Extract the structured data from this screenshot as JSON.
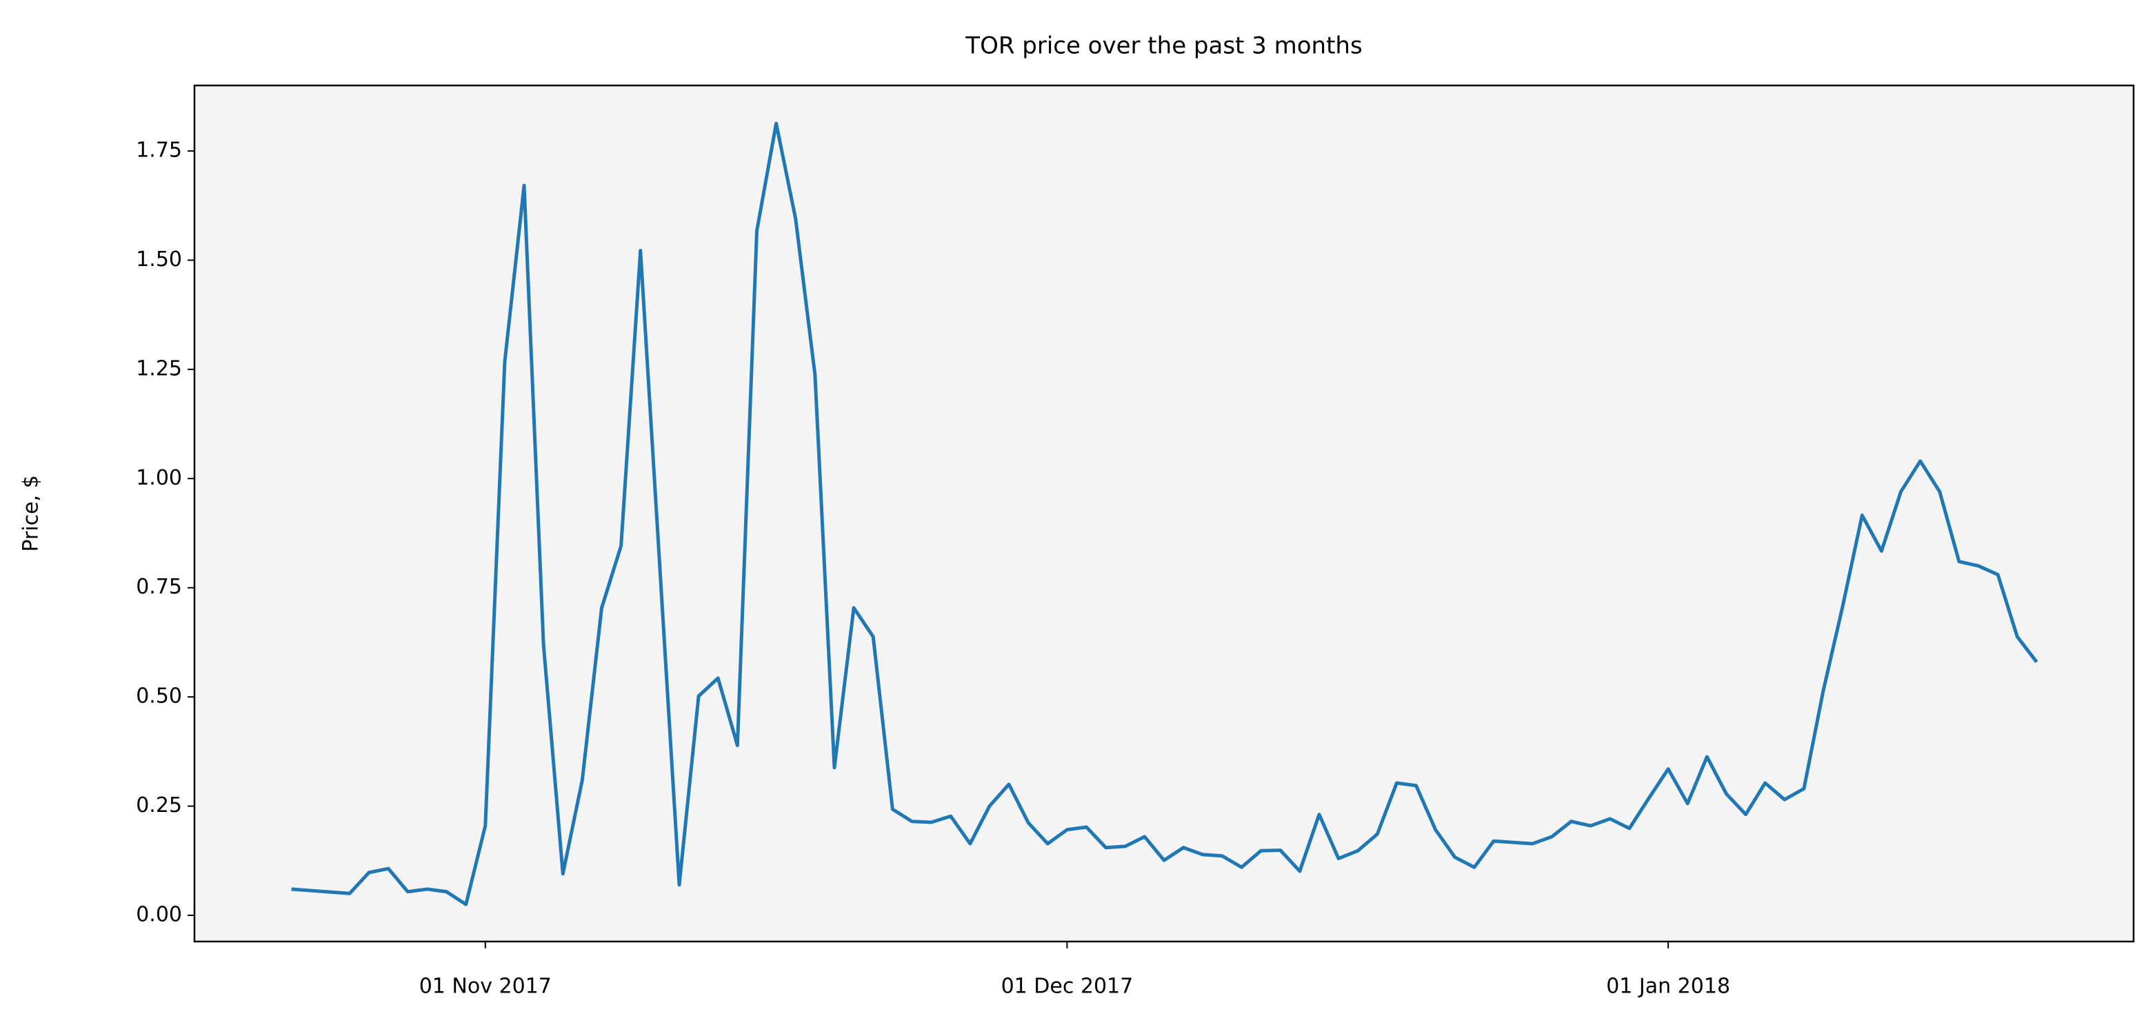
{
  "chart_data": {
    "type": "line",
    "title": "TOR price over the past 3 months",
    "y_label": "Price, $",
    "x": [
      "2017-10-22",
      "2017-10-25",
      "2017-10-26",
      "2017-10-27",
      "2017-10-28",
      "2017-10-29",
      "2017-10-30",
      "2017-10-31",
      "2017-11-01",
      "2017-11-02",
      "2017-11-03",
      "2017-11-04",
      "2017-11-05",
      "2017-11-06",
      "2017-11-07",
      "2017-11-08",
      "2017-11-09",
      "2017-11-11",
      "2017-11-12",
      "2017-11-13",
      "2017-11-14",
      "2017-11-15",
      "2017-11-16",
      "2017-11-17",
      "2017-11-18",
      "2017-11-19",
      "2017-11-20",
      "2017-11-21",
      "2017-11-22",
      "2017-11-23",
      "2017-11-24",
      "2017-11-25",
      "2017-11-26",
      "2017-11-27",
      "2017-11-28",
      "2017-11-29",
      "2017-11-30",
      "2017-12-01",
      "2017-12-02",
      "2017-12-03",
      "2017-12-04",
      "2017-12-05",
      "2017-12-06",
      "2017-12-07",
      "2017-12-08",
      "2017-12-09",
      "2017-12-10",
      "2017-12-11",
      "2017-12-12",
      "2017-12-13",
      "2017-12-14",
      "2017-12-15",
      "2017-12-16",
      "2017-12-17",
      "2017-12-18",
      "2017-12-19",
      "2017-12-20",
      "2017-12-21",
      "2017-12-22",
      "2017-12-23",
      "2017-12-25",
      "2017-12-26",
      "2017-12-27",
      "2017-12-28",
      "2017-12-29",
      "2017-12-30",
      "2017-12-31",
      "2018-01-01",
      "2018-01-02",
      "2018-01-03",
      "2018-01-04",
      "2018-01-05",
      "2018-01-06",
      "2018-01-07",
      "2018-01-08",
      "2018-01-09",
      "2018-01-10",
      "2018-01-11",
      "2018-01-12",
      "2018-01-13",
      "2018-01-14",
      "2018-01-15",
      "2018-01-16",
      "2018-01-17",
      "2018-01-18",
      "2018-01-19",
      "2018-01-20"
    ],
    "series": [
      {
        "name": "TOR",
        "color": "#1f77b4",
        "values": [
          0.06,
          0.05,
          0.098,
          0.107,
          0.054,
          0.06,
          0.054,
          0.025,
          0.205,
          1.267,
          1.671,
          0.62,
          0.095,
          0.31,
          0.704,
          0.846,
          1.522,
          0.07,
          0.502,
          0.543,
          0.389,
          1.567,
          1.813,
          1.595,
          1.238,
          0.338,
          0.704,
          0.638,
          0.243,
          0.215,
          0.213,
          0.227,
          0.164,
          0.25,
          0.3,
          0.212,
          0.164,
          0.196,
          0.202,
          0.155,
          0.158,
          0.18,
          0.126,
          0.155,
          0.139,
          0.136,
          0.11,
          0.148,
          0.149,
          0.101,
          0.231,
          0.13,
          0.148,
          0.186,
          0.303,
          0.297,
          0.196,
          0.133,
          0.11,
          0.17,
          0.164,
          0.18,
          0.215,
          0.205,
          0.221,
          0.199,
          0.268,
          0.335,
          0.256,
          0.363,
          0.278,
          0.231,
          0.303,
          0.265,
          0.29,
          0.515,
          0.708,
          0.916,
          0.834,
          0.97,
          1.04,
          0.97,
          0.81,
          0.8,
          0.78,
          0.638,
          0.58
        ]
      }
    ],
    "xlim": [
      "2017-10-17",
      "2018-01-25"
    ],
    "xticks": [
      {
        "value": "2017-11-01",
        "label": "01 Nov 2017"
      },
      {
        "value": "2017-12-01",
        "label": "01 Dec 2017"
      },
      {
        "value": "2018-01-01",
        "label": "01 Jan 2018"
      }
    ],
    "ylim": [
      -0.06,
      1.9
    ],
    "yticks": [
      {
        "value": 0,
        "label": "0.00"
      },
      0.25,
      {
        "value": 0.5,
        "label": "0.50"
      },
      0.75,
      {
        "value": 1,
        "label": "1.00"
      },
      1.25,
      {
        "value": 1.5,
        "label": "1.50"
      },
      1.75
    ],
    "background": "#f4f4f4"
  }
}
